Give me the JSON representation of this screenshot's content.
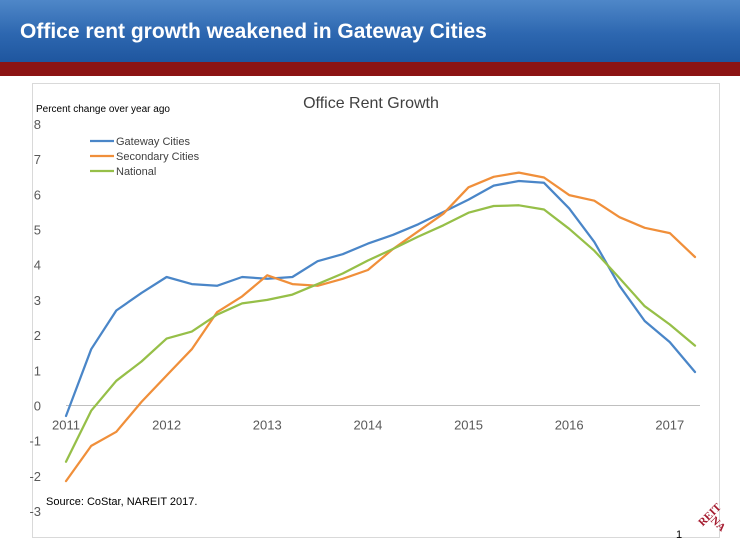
{
  "slide": {
    "title": "Office rent growth weakened in Gateway Cities",
    "page_number": "1",
    "logo_text": "NAREIT",
    "colors": {
      "header": "#2d67b0",
      "rule": "#8c1414",
      "logo": "#a51c30"
    }
  },
  "chart_data": {
    "type": "line",
    "title": "Office Rent Growth",
    "ylabel": "Percent change over year ago",
    "xlabel": "",
    "ylim": [
      -3,
      8
    ],
    "yticks": [
      "8",
      "7",
      "6",
      "5",
      "4",
      "3",
      "2",
      "1",
      "0",
      "-1",
      "-2",
      "-3"
    ],
    "xlim": [
      2011.0,
      2017.3
    ],
    "xticks": [
      "2011",
      "2012",
      "2013",
      "2014",
      "2015",
      "2016",
      "2017"
    ],
    "legend_position": "top-left",
    "grid": false,
    "source": "Source: CoStar, NAREIT 2017.",
    "x": [
      2011.0,
      2011.25,
      2011.5,
      2011.75,
      2012.0,
      2012.25,
      2012.5,
      2012.75,
      2013.0,
      2013.25,
      2013.5,
      2013.75,
      2014.0,
      2014.25,
      2014.5,
      2014.75,
      2015.0,
      2015.25,
      2015.5,
      2015.75,
      2016.0,
      2016.25,
      2016.5,
      2016.75,
      2017.0,
      2017.25
    ],
    "series": [
      {
        "name": "Gateway Cities",
        "color": "#4a86c8",
        "values": [
          -0.3,
          1.6,
          2.7,
          3.2,
          3.65,
          3.45,
          3.4,
          3.65,
          3.6,
          3.65,
          4.1,
          4.3,
          4.6,
          4.85,
          5.15,
          5.5,
          5.85,
          6.25,
          6.38,
          6.33,
          5.6,
          4.65,
          3.4,
          2.4,
          1.8,
          0.95
        ]
      },
      {
        "name": "Secondary Cities",
        "color": "#f08f3a",
        "values": [
          -2.15,
          -1.15,
          -0.75,
          0.1,
          0.85,
          1.6,
          2.65,
          3.1,
          3.7,
          3.45,
          3.4,
          3.6,
          3.85,
          4.45,
          4.95,
          5.45,
          6.2,
          6.5,
          6.62,
          6.48,
          5.98,
          5.82,
          5.35,
          5.05,
          4.9,
          4.22
        ]
      },
      {
        "name": "National",
        "color": "#96bf48",
        "values": [
          -1.6,
          -0.15,
          0.7,
          1.25,
          1.9,
          2.1,
          2.58,
          2.9,
          3.0,
          3.15,
          3.45,
          3.75,
          4.12,
          4.45,
          4.8,
          5.12,
          5.48,
          5.67,
          5.69,
          5.57,
          5.02,
          4.4,
          3.62,
          2.82,
          2.3,
          1.7
        ]
      }
    ]
  }
}
